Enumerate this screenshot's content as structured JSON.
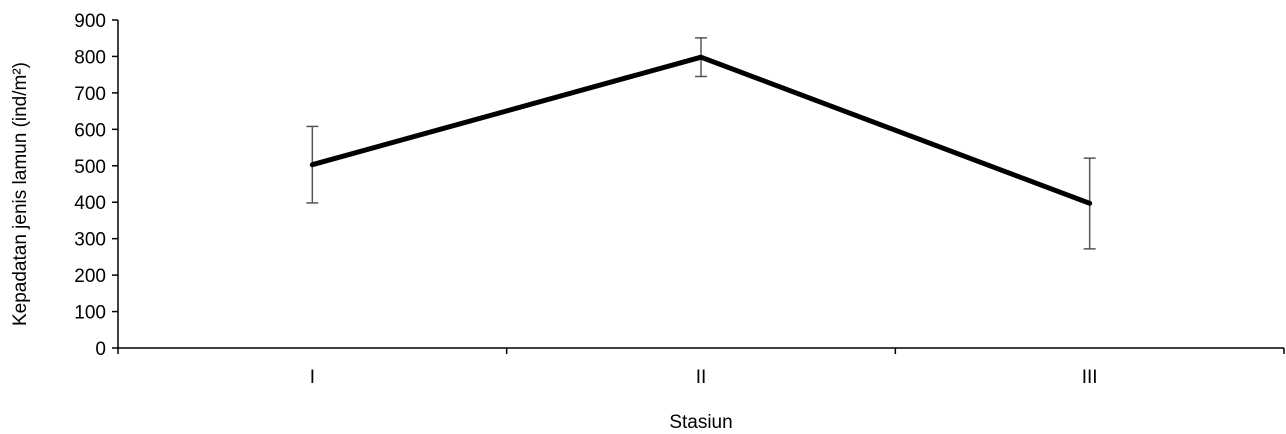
{
  "chart_data": {
    "type": "line",
    "categories": [
      "I",
      "II",
      "III"
    ],
    "series": [
      {
        "values": [
          503,
          798,
          397
        ],
        "error_low": [
          398,
          745,
          272
        ],
        "error_high": [
          608,
          851,
          521
        ]
      }
    ],
    "xlabel": "Stasiun",
    "ylabel": "Kepadatan jenis lamun (ind/m²)",
    "ylim": [
      0,
      900
    ],
    "yticks": [
      0,
      100,
      200,
      300,
      400,
      500,
      600,
      700,
      800,
      900
    ],
    "grid": false,
    "legend": "none",
    "colors": {
      "line": "#000000",
      "error_bar": "#555555",
      "axis": "#000000"
    }
  }
}
